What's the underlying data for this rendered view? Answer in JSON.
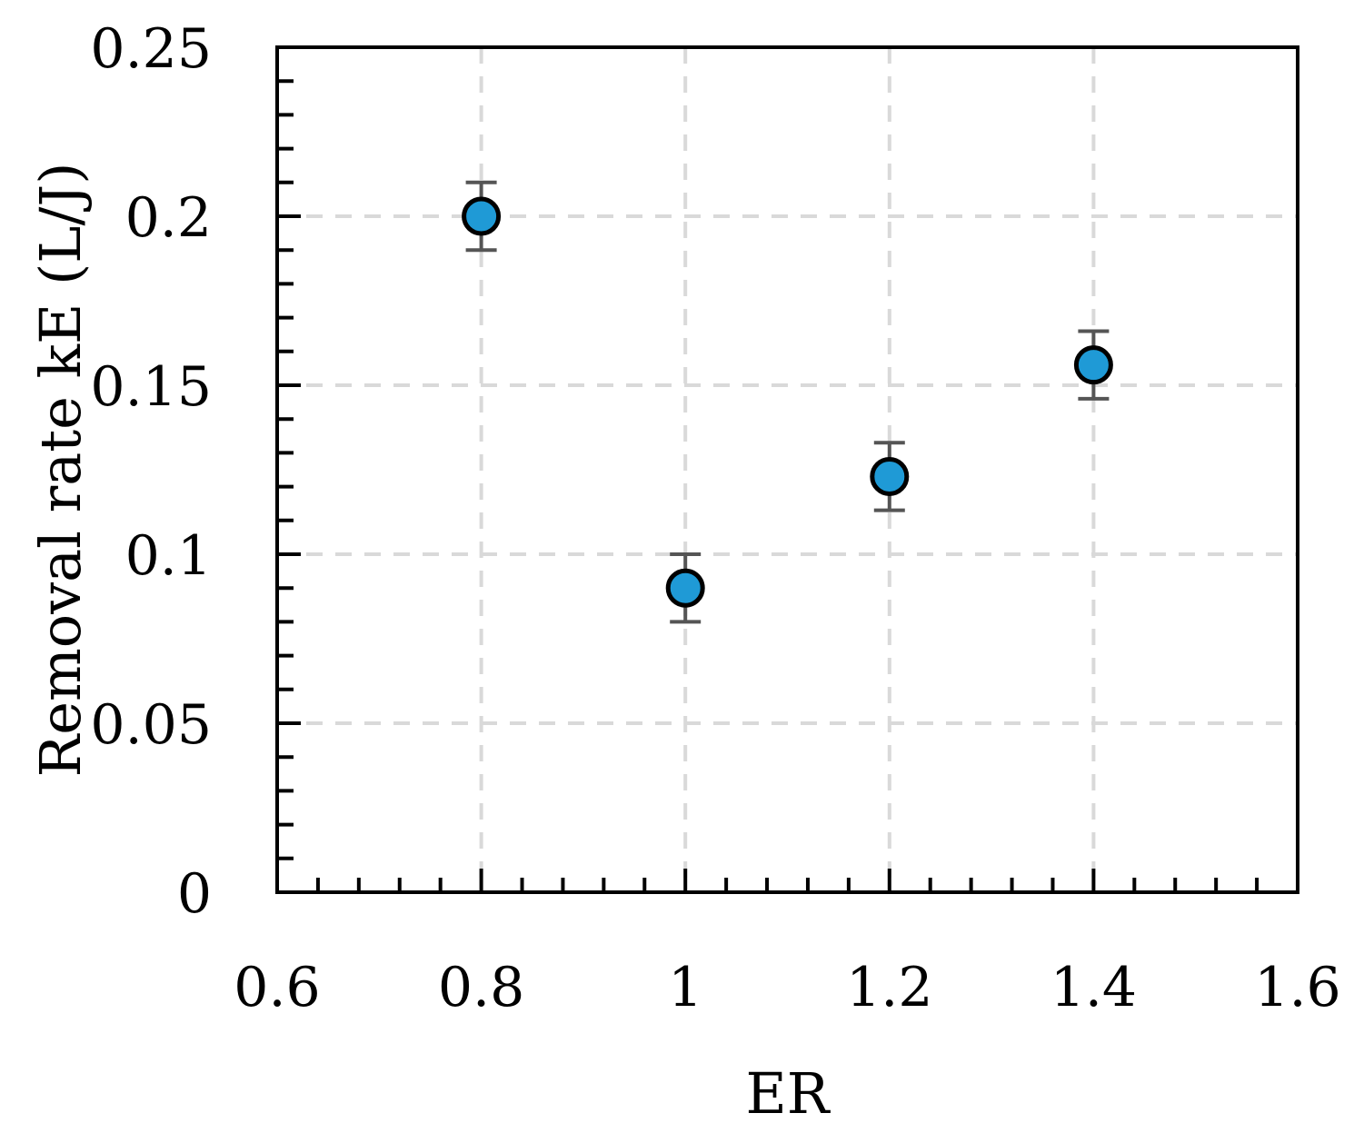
{
  "chart_data": {
    "type": "scatter",
    "xlabel": "ER",
    "ylabel": "Removal rate kE (L/J)",
    "xlim": [
      0.6,
      1.6
    ],
    "ylim": [
      0,
      0.25
    ],
    "xticks": [
      0.6,
      0.8,
      1,
      1.2,
      1.4,
      1.6
    ],
    "xtick_labels": [
      "0.6",
      "0.8",
      "1",
      "1.2",
      "1.4",
      "1.6"
    ],
    "yticks": [
      0,
      0.05,
      0.1,
      0.15,
      0.2,
      0.25
    ],
    "ytick_labels": [
      "0",
      "0.05",
      "0.1",
      "0.15",
      "0.2",
      "0.25"
    ],
    "grid": true,
    "colors": {
      "marker": "#1f9ad6",
      "marker_edge": "#000000",
      "error_bar": "#555555",
      "grid": "#d9d9d9"
    },
    "series": [
      {
        "x": [
          0.8,
          1.0,
          1.2,
          1.4
        ],
        "y": [
          0.2,
          0.09,
          0.123,
          0.156
        ],
        "error": [
          0.01,
          0.01,
          0.01,
          0.01
        ]
      }
    ]
  }
}
